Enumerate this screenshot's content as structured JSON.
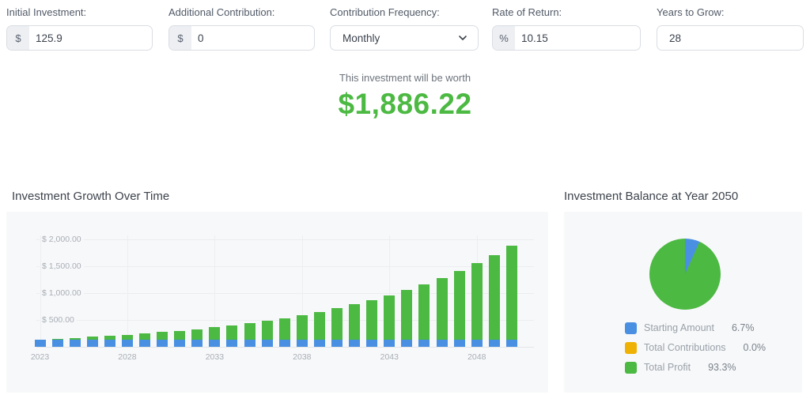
{
  "form": {
    "fields": [
      {
        "id": "initial-investment",
        "label": "Initial Investment:",
        "prefix": "$",
        "value": "125.9",
        "control": "input"
      },
      {
        "id": "additional-contribution",
        "label": "Additional Contribution:",
        "prefix": "$",
        "value": "0",
        "control": "input"
      },
      {
        "id": "contribution-frequency",
        "label": "Contribution Frequency:",
        "value": "Monthly",
        "control": "select"
      },
      {
        "id": "rate-of-return",
        "label": "Rate of Return:",
        "prefix": "%",
        "value": "10.15",
        "control": "input"
      },
      {
        "id": "years-to-grow",
        "label": "Years to Grow:",
        "value": "28",
        "control": "input"
      }
    ]
  },
  "result": {
    "caption": "This investment will be worth",
    "amount": "$1,886.22"
  },
  "colors": {
    "green": "#4CB943",
    "blue": "#4A90E2",
    "amber": "#EFB104"
  },
  "chart_data": [
    {
      "type": "bar",
      "stacked": true,
      "title": "Investment Growth Over Time",
      "x": [
        2023,
        2024,
        2025,
        2026,
        2027,
        2028,
        2029,
        2030,
        2031,
        2032,
        2033,
        2034,
        2035,
        2036,
        2037,
        2038,
        2039,
        2040,
        2041,
        2042,
        2043,
        2044,
        2045,
        2046,
        2047,
        2048,
        2049,
        2050
      ],
      "totals": [
        138.68,
        152.76,
        168.26,
        185.34,
        204.15,
        224.87,
        247.69,
        272.83,
        300.52,
        331.02,
        364.62,
        401.63,
        442.4,
        487.3,
        536.76,
        591.24,
        651.25,
        717.35,
        790.16,
        870.36,
        958.7,
        1056.01,
        1163.2,
        1281.26,
        1411.31,
        1554.56,
        1712.35,
        1886.22
      ],
      "starting_amount": 125.9,
      "series": [
        {
          "name": "Starting Amount",
          "color": "#4A90E2"
        },
        {
          "name": "Profit",
          "color": "#4CB943"
        }
      ],
      "x_tick_labels": [
        "2023",
        "2028",
        "2033",
        "2038",
        "2043",
        "2048"
      ],
      "y_ticks": [
        {
          "value": 500,
          "label": "$ 500.00"
        },
        {
          "value": 1000,
          "label": "$ 1,000.00"
        },
        {
          "value": 1500,
          "label": "$ 1,500.00"
        },
        {
          "value": 2000,
          "label": "$ 2,000.00"
        }
      ],
      "ylim": [
        0,
        2125
      ],
      "grid": true,
      "legend_position": "none"
    },
    {
      "type": "pie",
      "title": "Investment Balance at Year 2050",
      "slices": [
        {
          "label": "Starting Amount",
          "value": 6.7,
          "pct_label": "6.7%",
          "color": "#4A90E2"
        },
        {
          "label": "Total Contributions",
          "value": 0.0,
          "pct_label": "0.0%",
          "color": "#EFB104"
        },
        {
          "label": "Total Profit",
          "value": 93.3,
          "pct_label": "93.3%",
          "color": "#4CB943"
        }
      ],
      "legend_position": "bottom"
    }
  ]
}
